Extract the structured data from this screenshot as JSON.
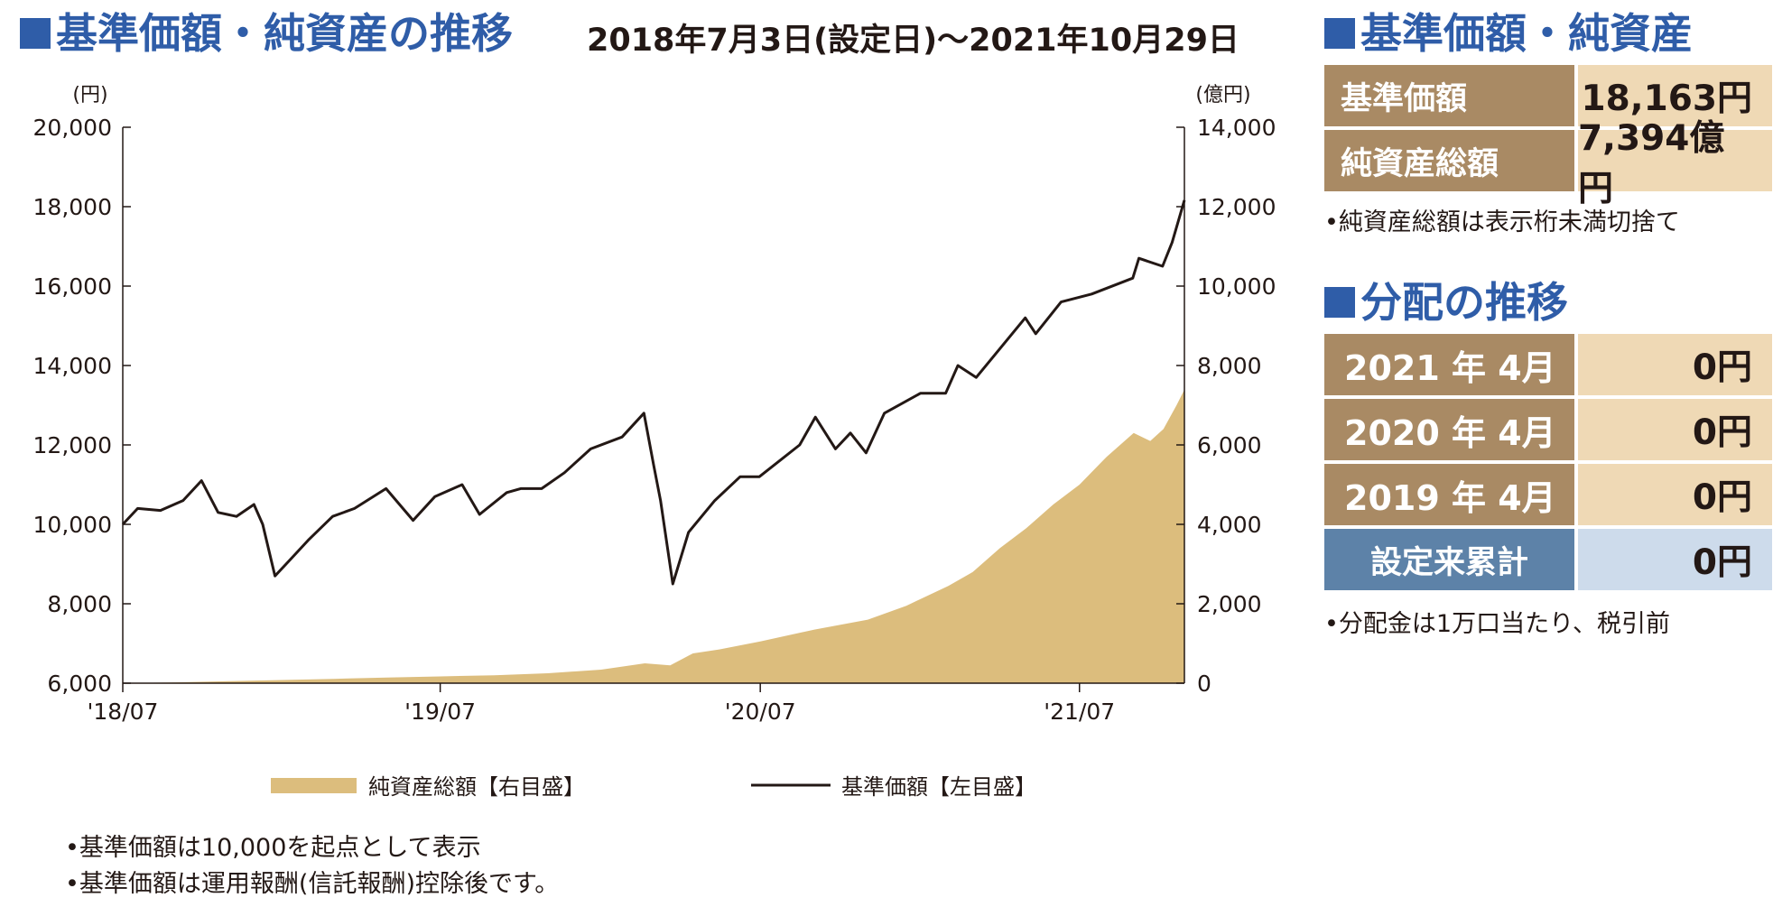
{
  "chart_section": {
    "title": "基準価額・純資産の推移",
    "period": "2018年7月3日(設定日)～2021年10月29日",
    "notes": [
      "•基準価額は10,000を起点として表示",
      "•基準価額は運用報酬(信託報酬)控除後です。"
    ]
  },
  "nav_section": {
    "title": "基準価額・純資産",
    "rows": [
      {
        "label": "基準価額",
        "value": "18,163円"
      },
      {
        "label": "純資産総額",
        "value": "7,394億円"
      }
    ],
    "note": "•純資産総額は表示桁未満切捨て"
  },
  "distribution_section": {
    "title": "分配の推移",
    "rows": [
      {
        "label": "2021 年  4月",
        "value": "0円"
      },
      {
        "label": "2020 年  4月",
        "value": "0円"
      },
      {
        "label": "2019 年  4月",
        "value": "0円"
      }
    ],
    "total_label": "設定来累計",
    "total_value": "0円",
    "note": "•分配金は1万口当たり、税引前"
  },
  "colors": {
    "heading_blue": "#2f5da8",
    "table_label_brown": "#a98a64",
    "table_value_beige": "#efd9b5",
    "total_label_blue": "#5d82a8",
    "total_value_blue": "#cddbeb",
    "area_gold": "#dcbd7d",
    "line_black": "#231815"
  },
  "chart_data": {
    "type": "line",
    "left_unit": "(円)",
    "right_unit": "(億円)",
    "left_ticks": [
      "20,000",
      "18,000",
      "16,000",
      "14,000",
      "12,000",
      "10,000",
      "8,000",
      "6,000"
    ],
    "right_ticks": [
      "14,000",
      "12,000",
      "10,000",
      "8,000",
      "6,000",
      "4,000",
      "2,000",
      "0"
    ],
    "x_ticks": [
      "'18/07",
      "'19/07",
      "'20/07",
      "'21/07"
    ],
    "ylim_left": [
      6000,
      20000
    ],
    "ylim_right": [
      0,
      14000
    ],
    "x_range": [
      "2018-07-03",
      "2021-10-29"
    ],
    "series": [
      {
        "name": "純資産総額【右目盛】",
        "axis": "right",
        "style": "area",
        "color": "#dcbd7d",
        "points": [
          [
            "2018-07-03",
            0
          ],
          [
            "2018-09-01",
            20
          ],
          [
            "2018-11-01",
            50
          ],
          [
            "2019-01-01",
            80
          ],
          [
            "2019-03-01",
            110
          ],
          [
            "2019-05-01",
            140
          ],
          [
            "2019-07-01",
            170
          ],
          [
            "2019-09-01",
            200
          ],
          [
            "2019-11-01",
            250
          ],
          [
            "2020-01-01",
            340
          ],
          [
            "2020-02-20",
            500
          ],
          [
            "2020-03-20",
            450
          ],
          [
            "2020-04-15",
            750
          ],
          [
            "2020-05-15",
            850
          ],
          [
            "2020-07-01",
            1050
          ],
          [
            "2020-09-01",
            1350
          ],
          [
            "2020-11-01",
            1600
          ],
          [
            "2020-12-15",
            1950
          ],
          [
            "2021-02-01",
            2450
          ],
          [
            "2021-03-01",
            2800
          ],
          [
            "2021-04-01",
            3400
          ],
          [
            "2021-05-01",
            3900
          ],
          [
            "2021-06-01",
            4500
          ],
          [
            "2021-07-01",
            5000
          ],
          [
            "2021-08-01",
            5700
          ],
          [
            "2021-09-01",
            6300
          ],
          [
            "2021-09-20",
            6100
          ],
          [
            "2021-10-05",
            6400
          ],
          [
            "2021-10-20",
            7000
          ],
          [
            "2021-10-29",
            7394
          ]
        ]
      },
      {
        "name": "基準価額【左目盛】",
        "axis": "left",
        "style": "line",
        "color": "#231815",
        "points": [
          [
            "2018-07-03",
            10000
          ],
          [
            "2018-07-20",
            10400
          ],
          [
            "2018-08-15",
            10350
          ],
          [
            "2018-09-10",
            10600
          ],
          [
            "2018-10-01",
            11100
          ],
          [
            "2018-10-20",
            10300
          ],
          [
            "2018-11-10",
            10200
          ],
          [
            "2018-11-30",
            10500
          ],
          [
            "2018-12-10",
            10000
          ],
          [
            "2018-12-24",
            8700
          ],
          [
            "2019-01-10",
            9100
          ],
          [
            "2019-01-31",
            9600
          ],
          [
            "2019-02-28",
            10200
          ],
          [
            "2019-03-25",
            10400
          ],
          [
            "2019-04-30",
            10900
          ],
          [
            "2019-05-31",
            10100
          ],
          [
            "2019-06-25",
            10700
          ],
          [
            "2019-07-26",
            11000
          ],
          [
            "2019-08-15",
            10250
          ],
          [
            "2019-09-15",
            10800
          ],
          [
            "2019-10-01",
            10900
          ],
          [
            "2019-10-25",
            10900
          ],
          [
            "2019-11-20",
            11300
          ],
          [
            "2019-12-20",
            11900
          ],
          [
            "2020-01-25",
            12200
          ],
          [
            "2020-02-19",
            12800
          ],
          [
            "2020-03-01",
            11500
          ],
          [
            "2020-03-09",
            10600
          ],
          [
            "2020-03-23",
            8500
          ],
          [
            "2020-04-10",
            9800
          ],
          [
            "2020-05-10",
            10600
          ],
          [
            "2020-06-08",
            11200
          ],
          [
            "2020-06-30",
            11200
          ],
          [
            "2020-08-15",
            12000
          ],
          [
            "2020-09-02",
            12700
          ],
          [
            "2020-09-25",
            11900
          ],
          [
            "2020-10-12",
            12300
          ],
          [
            "2020-10-30",
            11800
          ],
          [
            "2020-11-20",
            12800
          ],
          [
            "2020-12-31",
            13300
          ],
          [
            "2021-01-29",
            13300
          ],
          [
            "2021-02-12",
            14000
          ],
          [
            "2021-03-05",
            13700
          ],
          [
            "2021-04-30",
            15200
          ],
          [
            "2021-05-12",
            14800
          ],
          [
            "2021-06-10",
            15600
          ],
          [
            "2021-07-15",
            15800
          ],
          [
            "2021-08-31",
            16200
          ],
          [
            "2021-09-07",
            16700
          ],
          [
            "2021-10-04",
            16500
          ],
          [
            "2021-10-15",
            17100
          ],
          [
            "2021-10-29",
            18163
          ]
        ]
      }
    ]
  }
}
